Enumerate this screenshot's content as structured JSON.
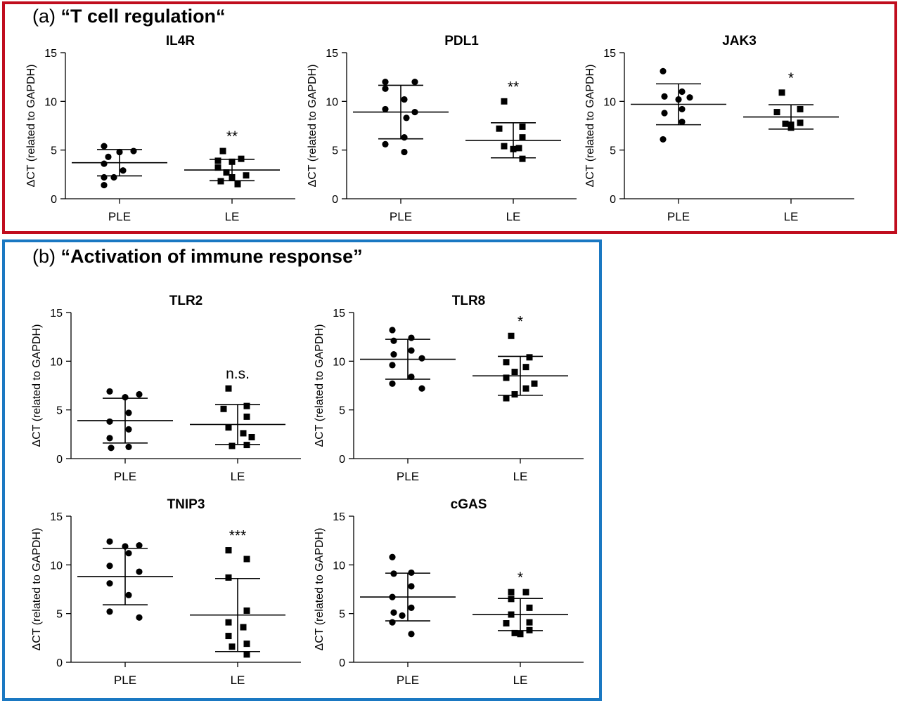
{
  "panel_a": {
    "label": "(a)",
    "title": "“T cell regulation“",
    "border_color": "#c00d1e"
  },
  "panel_b": {
    "label": "(b)",
    "title": "“Activation of immune response”",
    "border_color": "#1a78c2"
  },
  "chart_data": [
    {
      "id": "il4r",
      "type": "scatter",
      "title": "IL4R",
      "ylabel": "ΔCT (related to GAPDH)",
      "categories": [
        "PLE",
        "LE"
      ],
      "ylim": [
        0,
        15
      ],
      "yticks": [
        0,
        5,
        10,
        15
      ],
      "grid": false,
      "series": [
        {
          "marker": "circle",
          "values": [
            5.4,
            4.9,
            4.8,
            4.3,
            3.6,
            2.9,
            2.2,
            2.2,
            1.4
          ],
          "mean": 3.7,
          "sd": 1.35
        },
        {
          "marker": "square",
          "values": [
            4.9,
            4.1,
            3.9,
            3.8,
            3.2,
            2.7,
            2.4,
            2.2,
            1.8,
            1.5
          ],
          "mean": 2.95,
          "sd": 1.1
        }
      ],
      "annotations": [
        "",
        "**"
      ]
    },
    {
      "id": "pdl1",
      "type": "scatter",
      "title": "PDL1",
      "ylabel": "ΔCT (related to GAPDH)",
      "categories": [
        "PLE",
        "LE"
      ],
      "ylim": [
        0,
        15
      ],
      "yticks": [
        0,
        5,
        10,
        15
      ],
      "grid": false,
      "series": [
        {
          "marker": "circle",
          "values": [
            12.0,
            12.0,
            11.3,
            10.2,
            9.2,
            8.9,
            8.3,
            6.3,
            5.6,
            4.8
          ],
          "mean": 8.9,
          "sd": 2.75
        },
        {
          "marker": "square",
          "values": [
            10.0,
            7.4,
            7.2,
            6.3,
            5.4,
            5.2,
            5.1,
            4.1
          ],
          "mean": 6.0,
          "sd": 1.8
        }
      ],
      "annotations": [
        "",
        "**"
      ]
    },
    {
      "id": "jak3",
      "type": "scatter",
      "title": "JAK3",
      "ylabel": "ΔCT (related to GAPDH)",
      "categories": [
        "PLE",
        "LE"
      ],
      "ylim": [
        0,
        15
      ],
      "yticks": [
        0,
        5,
        10,
        15
      ],
      "grid": false,
      "series": [
        {
          "marker": "circle",
          "values": [
            13.1,
            11.0,
            10.5,
            10.4,
            10.2,
            9.2,
            8.8,
            7.9,
            6.1
          ],
          "mean": 9.7,
          "sd": 2.1
        },
        {
          "marker": "square",
          "values": [
            10.9,
            9.2,
            8.9,
            7.8,
            7.7,
            7.6,
            7.5,
            7.4,
            7.3
          ],
          "mean": 8.4,
          "sd": 1.25
        }
      ],
      "annotations": [
        "",
        "*"
      ]
    },
    {
      "id": "tlr2",
      "type": "scatter",
      "title": "TLR2",
      "ylabel": "ΔCT (related to GAPDH)",
      "categories": [
        "PLE",
        "LE"
      ],
      "ylim": [
        0,
        15
      ],
      "yticks": [
        0,
        5,
        10,
        15
      ],
      "grid": false,
      "series": [
        {
          "marker": "circle",
          "values": [
            6.9,
            6.6,
            6.3,
            4.7,
            3.8,
            3.0,
            2.1,
            1.2,
            1.1
          ],
          "mean": 3.9,
          "sd": 2.3
        },
        {
          "marker": "square",
          "values": [
            7.2,
            5.4,
            5.1,
            4.3,
            3.2,
            2.6,
            2.2,
            1.4,
            1.3
          ],
          "mean": 3.5,
          "sd": 2.05
        }
      ],
      "annotations": [
        "",
        "n.s."
      ]
    },
    {
      "id": "tlr8",
      "type": "scatter",
      "title": "TLR8",
      "ylabel": "ΔCT (related to GAPDH)",
      "categories": [
        "PLE",
        "LE"
      ],
      "ylim": [
        0,
        15
      ],
      "yticks": [
        0,
        5,
        10,
        15
      ],
      "grid": false,
      "series": [
        {
          "marker": "circle",
          "values": [
            13.2,
            12.4,
            12.1,
            11.1,
            10.7,
            10.3,
            9.6,
            8.4,
            7.7,
            7.2
          ],
          "mean": 10.2,
          "sd": 2.05
        },
        {
          "marker": "square",
          "values": [
            12.6,
            10.4,
            9.9,
            9.4,
            8.9,
            8.3,
            7.7,
            7.2,
            6.6,
            6.2
          ],
          "mean": 8.5,
          "sd": 2.0
        }
      ],
      "annotations": [
        "",
        "*"
      ]
    },
    {
      "id": "tnip3",
      "type": "scatter",
      "title": "TNIP3",
      "ylabel": "ΔCT (related to GAPDH)",
      "categories": [
        "PLE",
        "LE"
      ],
      "ylim": [
        0,
        15
      ],
      "yticks": [
        0,
        5,
        10,
        15
      ],
      "grid": false,
      "series": [
        {
          "marker": "circle",
          "values": [
            12.4,
            12.0,
            11.9,
            11.2,
            9.9,
            9.3,
            8.1,
            6.9,
            5.2,
            4.6
          ],
          "mean": 8.8,
          "sd": 2.9
        },
        {
          "marker": "square",
          "values": [
            11.5,
            10.6,
            8.7,
            5.3,
            4.1,
            3.6,
            2.7,
            1.9,
            1.6,
            0.8
          ],
          "mean": 4.85,
          "sd": 3.75
        }
      ],
      "annotations": [
        "",
        "***"
      ]
    },
    {
      "id": "cgas",
      "type": "scatter",
      "title": "cGAS",
      "ylabel": "ΔCT (related to GAPDH)",
      "categories": [
        "PLE",
        "LE"
      ],
      "ylim": [
        0,
        15
      ],
      "yticks": [
        0,
        5,
        10,
        15
      ],
      "grid": false,
      "series": [
        {
          "marker": "circle",
          "values": [
            10.8,
            9.2,
            9.1,
            7.8,
            6.7,
            5.6,
            5.1,
            4.8,
            4.1,
            2.9
          ],
          "mean": 6.7,
          "sd": 2.45
        },
        {
          "marker": "square",
          "values": [
            7.2,
            7.2,
            6.5,
            5.6,
            4.9,
            4.1,
            4.0,
            3.3,
            3.0,
            2.9
          ],
          "mean": 4.9,
          "sd": 1.65
        }
      ],
      "annotations": [
        "",
        "*"
      ]
    }
  ]
}
